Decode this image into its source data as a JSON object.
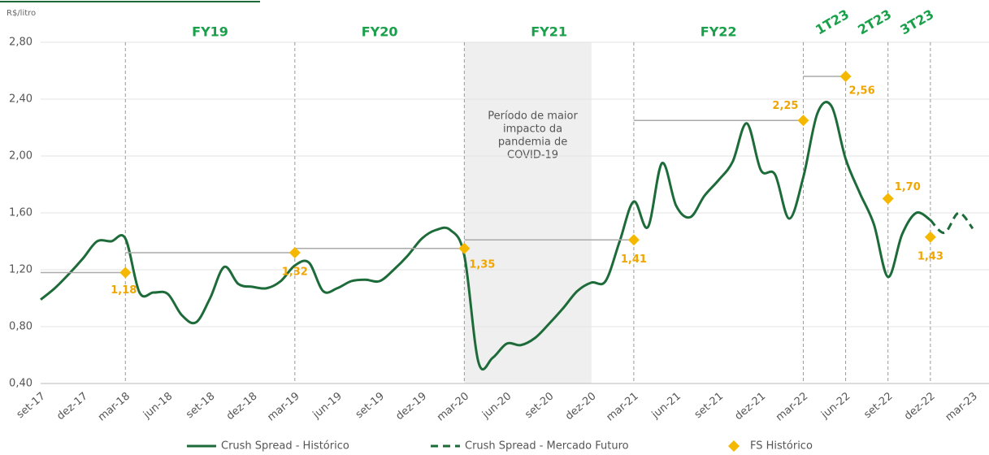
{
  "chart_data": {
    "type": "line",
    "y_label": "R$/litro",
    "categories": [
      "set-17",
      null,
      null,
      "dez-17",
      null,
      null,
      "mar-18",
      null,
      null,
      "jun-18",
      null,
      null,
      "set-18",
      null,
      null,
      "dez-18",
      null,
      null,
      "mar-19",
      null,
      null,
      "jun-19",
      null,
      null,
      "set-19",
      null,
      null,
      "dez-19",
      null,
      null,
      "mar-20",
      null,
      null,
      "jun-20",
      null,
      null,
      "set-20",
      null,
      null,
      "dez-20",
      null,
      null,
      "mar-21",
      null,
      null,
      "jun-21",
      null,
      null,
      "set-21",
      null,
      null,
      "dez-21",
      null,
      null,
      "mar-22",
      null,
      null,
      "jun-22",
      null,
      null,
      "set-22",
      null,
      null,
      "dez-22",
      null,
      null,
      "mar-23"
    ],
    "ylim": [
      0.4,
      2.8
    ],
    "yticks": [
      {
        "value": 0.4,
        "label": "0,40"
      },
      {
        "value": 0.8,
        "label": "0,80"
      },
      {
        "value": 1.2,
        "label": "1,20"
      },
      {
        "value": 1.6,
        "label": "1,60"
      },
      {
        "value": 2.0,
        "label": "2,00"
      },
      {
        "value": 2.4,
        "label": "2,40"
      },
      {
        "value": 2.8,
        "label": "2,80"
      }
    ],
    "grid": true,
    "series": [
      {
        "name": "Crush Spread - Histórico",
        "color": "#1e6b3a",
        "dash": false,
        "values": [
          0.99,
          1.07,
          1.17,
          1.28,
          1.4,
          1.4,
          1.42,
          1.04,
          1.04,
          1.03,
          0.88,
          0.83,
          1.0,
          1.22,
          1.1,
          1.08,
          1.07,
          1.12,
          1.23,
          1.25,
          1.05,
          1.07,
          1.12,
          1.13,
          1.12,
          1.2,
          1.3,
          1.42,
          1.48,
          1.48,
          1.3,
          0.55,
          0.58,
          0.68,
          0.67,
          0.72,
          0.82,
          0.93,
          1.05,
          1.11,
          1.12,
          1.4,
          1.68,
          1.5,
          1.95,
          1.65,
          1.57,
          1.72,
          1.83,
          1.96,
          2.23,
          1.9,
          1.87,
          1.56,
          1.85,
          2.3,
          2.35,
          1.98,
          1.74,
          1.52,
          1.15,
          1.45,
          1.6,
          1.55,
          null,
          null,
          null
        ]
      },
      {
        "name": "Crush Spread - Mercado Futuro",
        "color": "#1e6b3a",
        "dash": true,
        "values": [
          null,
          null,
          null,
          null,
          null,
          null,
          null,
          null,
          null,
          null,
          null,
          null,
          null,
          null,
          null,
          null,
          null,
          null,
          null,
          null,
          null,
          null,
          null,
          null,
          null,
          null,
          null,
          null,
          null,
          null,
          null,
          null,
          null,
          null,
          null,
          null,
          null,
          null,
          null,
          null,
          null,
          null,
          null,
          null,
          null,
          null,
          null,
          null,
          null,
          null,
          null,
          null,
          null,
          null,
          null,
          null,
          null,
          null,
          null,
          null,
          null,
          null,
          null,
          1.55,
          1.46,
          1.6,
          1.49
        ]
      },
      {
        "name": "FS Histórico",
        "type": "scatter",
        "color": "#f5b800",
        "x": [
          "mar-18",
          "mar-19",
          "mar-20",
          "mar-21",
          "mar-22",
          "jun-22",
          "set-22",
          "dez-22"
        ],
        "values": [
          1.18,
          1.32,
          1.35,
          1.41,
          2.25,
          2.56,
          1.7,
          1.43
        ],
        "value_labels": [
          "1,18",
          "1,32",
          "1,35",
          "1,41",
          "2,25",
          "2,56",
          "1,70",
          "1,43"
        ]
      }
    ],
    "periods": [
      "FY19",
      "FY20",
      "FY21",
      "FY22",
      "1T23",
      "2T23",
      "3T23"
    ],
    "shaded_range": [
      "mar-20",
      "dez-20"
    ],
    "annotation": [
      "Período de maior",
      "impacto da",
      "pandemia de",
      "COVID-19"
    ]
  }
}
